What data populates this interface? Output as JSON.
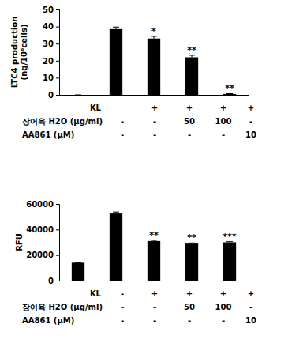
{
  "chart_data": [
    {
      "type": "bar",
      "y_label": [
        "LTC4 production",
        "(ng/10⁶cells)"
      ],
      "categories": [
        null,
        null,
        null,
        null,
        null
      ],
      "values": [
        0,
        38.5,
        33,
        22,
        0.5
      ],
      "errors": [
        0,
        1.2,
        1.3,
        1.2,
        0.2
      ],
      "annotations": [
        null,
        null,
        "*",
        "**",
        "**"
      ],
      "color": "#000000",
      "ylim": [
        0,
        50
      ],
      "yticks": [
        0,
        10,
        20,
        30,
        40,
        50
      ],
      "conditions": [
        {
          "label": "KL",
          "values": [
            null,
            "+",
            "+",
            "+",
            "+"
          ]
        },
        {
          "label": "장어육 H2O (μg/ml)",
          "values": [
            "-",
            "-",
            "50",
            "100",
            "-"
          ]
        },
        {
          "label": "AA861 (μM)",
          "values": [
            "-",
            "-",
            "-",
            "-",
            "10"
          ]
        }
      ]
    },
    {
      "type": "bar",
      "y_label": [
        "RFU"
      ],
      "categories": [
        null,
        null,
        null,
        null,
        null
      ],
      "values": [
        14000,
        52500,
        31000,
        29000,
        30000
      ],
      "errors": [
        0,
        1200,
        600,
        500,
        500
      ],
      "annotations": [
        null,
        null,
        "**",
        "**",
        "***"
      ],
      "color": "#000000",
      "ylim": [
        0,
        60000
      ],
      "yticks": [
        0,
        20000,
        40000,
        60000
      ],
      "conditions": [
        {
          "label": "KL",
          "values": [
            "-",
            "+",
            "+",
            "+",
            "+"
          ]
        },
        {
          "label": "장어육 H2O (μg/ml)",
          "values": [
            "-",
            "-",
            "50",
            "100",
            "-"
          ]
        },
        {
          "label": "AA861 (μM)",
          "values": [
            "-",
            "-",
            "-",
            "-",
            "10"
          ]
        }
      ]
    }
  ]
}
